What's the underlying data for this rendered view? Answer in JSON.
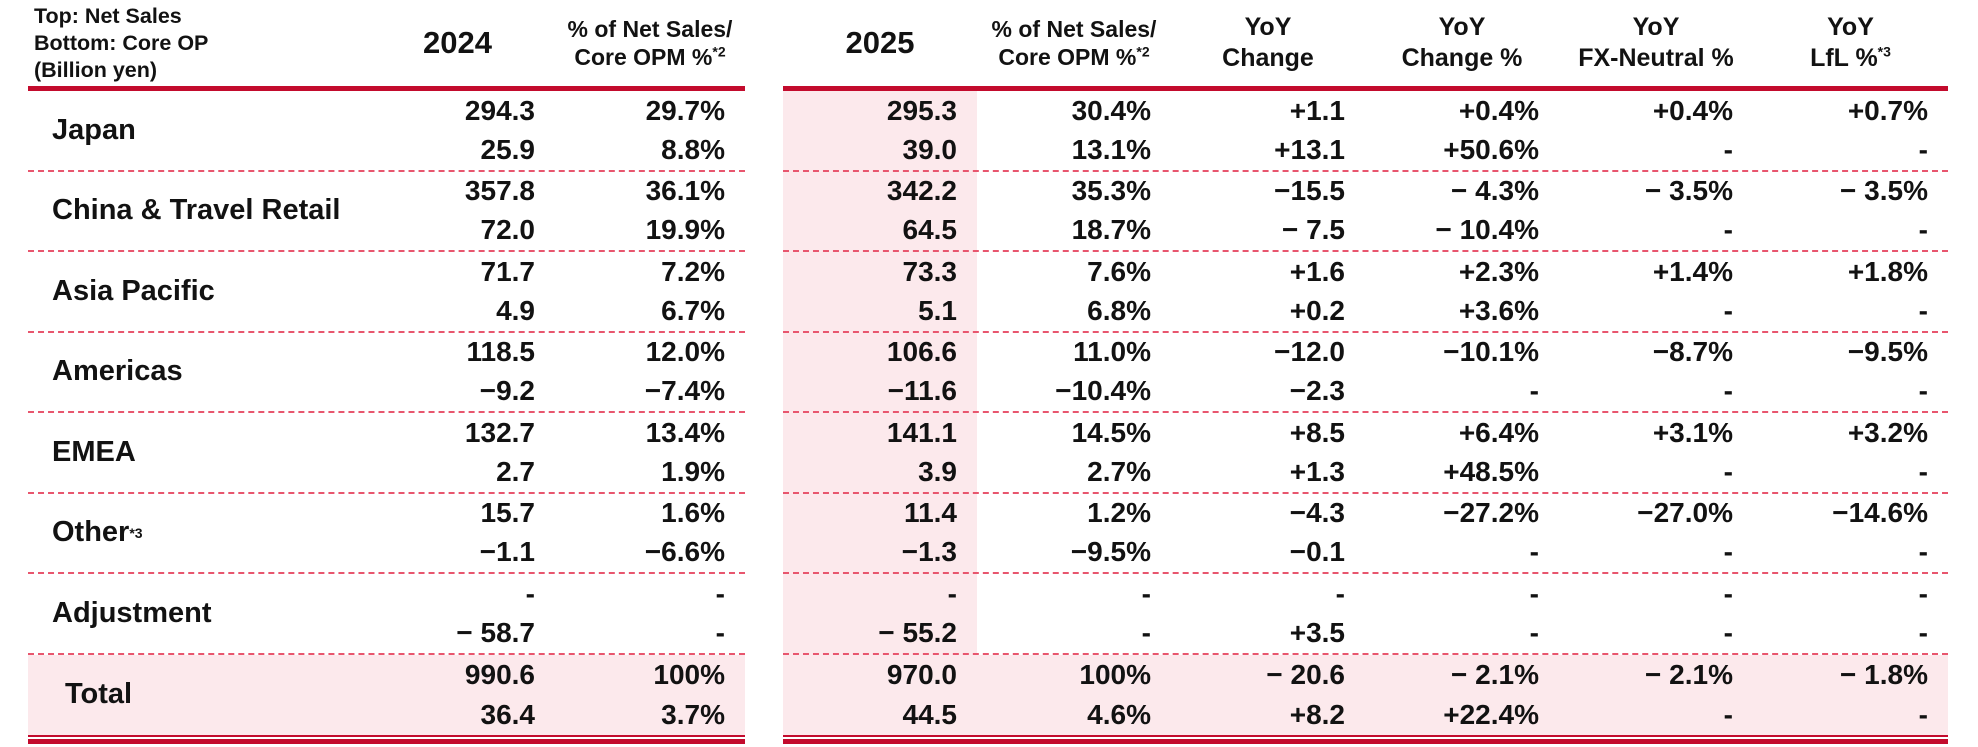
{
  "note": [
    "Top: Net Sales",
    "Bottom: Core OP",
    "(Billion yen)"
  ],
  "colors": {
    "accent_red": "#c30b2d",
    "dashed_separator": "#e8566e",
    "highlight_pink": "#fce9ec"
  },
  "headers": {
    "year_2024": "2024",
    "year_2025": "2025",
    "pct_line1": "% of Net Sales/",
    "pct_line2": "Core OPM %",
    "pct_sup": "*2",
    "yoy_change_line1": "YoY",
    "yoy_change_line2": "Change",
    "yoy_change_pct_line1": "YoY",
    "yoy_change_pct_line2": "Change %",
    "yoy_fx_line1": "YoY",
    "yoy_fx_line2": "FX-Neutral %",
    "yoy_lfl_line1": "YoY",
    "yoy_lfl_line2": "LfL %",
    "yoy_lfl_sup": "*3"
  },
  "columns_order": [
    "2024",
    "% of Net Sales/Core OPM %*2",
    "2025",
    "% of Net Sales/Core OPM %*2",
    "YoY Change",
    "YoY Change %",
    "YoY FX-Neutral %",
    "YoY LfL %*3"
  ],
  "rows": [
    {
      "label": "Japan",
      "label_sup": "",
      "total": false,
      "top": [
        "294.3",
        "29.7%",
        "295.3",
        "30.4%",
        "+1.1",
        "+0.4%",
        "+0.4%",
        "+0.7%"
      ],
      "bottom": [
        "25.9",
        "8.8%",
        "39.0",
        "13.1%",
        "+13.1",
        "+50.6%",
        "-",
        "-"
      ]
    },
    {
      "label": "China & Travel Retail",
      "label_sup": "",
      "total": false,
      "top": [
        "357.8",
        "36.1%",
        "342.2",
        "35.3%",
        "−15.5",
        "− 4.3%",
        "− 3.5%",
        "− 3.5%"
      ],
      "bottom": [
        "72.0",
        "19.9%",
        "64.5",
        "18.7%",
        "− 7.5",
        "− 10.4%",
        "-",
        "-"
      ]
    },
    {
      "label": "Asia Pacific",
      "label_sup": "",
      "total": false,
      "top": [
        "71.7",
        "7.2%",
        "73.3",
        "7.6%",
        "+1.6",
        "+2.3%",
        "+1.4%",
        "+1.8%"
      ],
      "bottom": [
        "4.9",
        "6.7%",
        "5.1",
        "6.8%",
        "+0.2",
        "+3.6%",
        "-",
        "-"
      ]
    },
    {
      "label": "Americas",
      "label_sup": "",
      "total": false,
      "top": [
        "118.5",
        "12.0%",
        "106.6",
        "11.0%",
        "−12.0",
        "−10.1%",
        "−8.7%",
        "−9.5%"
      ],
      "bottom": [
        "−9.2",
        "−7.4%",
        "−11.6",
        "−10.4%",
        "−2.3",
        "-",
        "-",
        "-"
      ]
    },
    {
      "label": "EMEA",
      "label_sup": "",
      "total": false,
      "top": [
        "132.7",
        "13.4%",
        "141.1",
        "14.5%",
        "+8.5",
        "+6.4%",
        "+3.1%",
        "+3.2%"
      ],
      "bottom": [
        "2.7",
        "1.9%",
        "3.9",
        "2.7%",
        "+1.3",
        "+48.5%",
        "-",
        "-"
      ]
    },
    {
      "label": "Other",
      "label_sup": "*3",
      "total": false,
      "top": [
        "15.7",
        "1.6%",
        "11.4",
        "1.2%",
        "−4.3",
        "−27.2%",
        "−27.0%",
        "−14.6%"
      ],
      "bottom": [
        "−1.1",
        "−6.6%",
        "−1.3",
        "−9.5%",
        "−0.1",
        "-",
        "-",
        "-"
      ]
    },
    {
      "label": "Adjustment",
      "label_sup": "",
      "total": false,
      "top": [
        "-",
        "-",
        "-",
        "-",
        "-",
        "-",
        "-",
        "-"
      ],
      "bottom": [
        "− 58.7",
        "-",
        "− 55.2",
        "-",
        "+3.5",
        "-",
        "-",
        "-"
      ]
    },
    {
      "label": "Total",
      "label_sup": "",
      "total": true,
      "top": [
        "990.6",
        "100%",
        "970.0",
        "100%",
        "− 20.6",
        "− 2.1%",
        "− 2.1%",
        "− 1.8%"
      ],
      "bottom": [
        "36.4",
        "3.7%",
        "44.5",
        "4.6%",
        "+8.2",
        "+22.4%",
        "-",
        "-"
      ]
    }
  ]
}
